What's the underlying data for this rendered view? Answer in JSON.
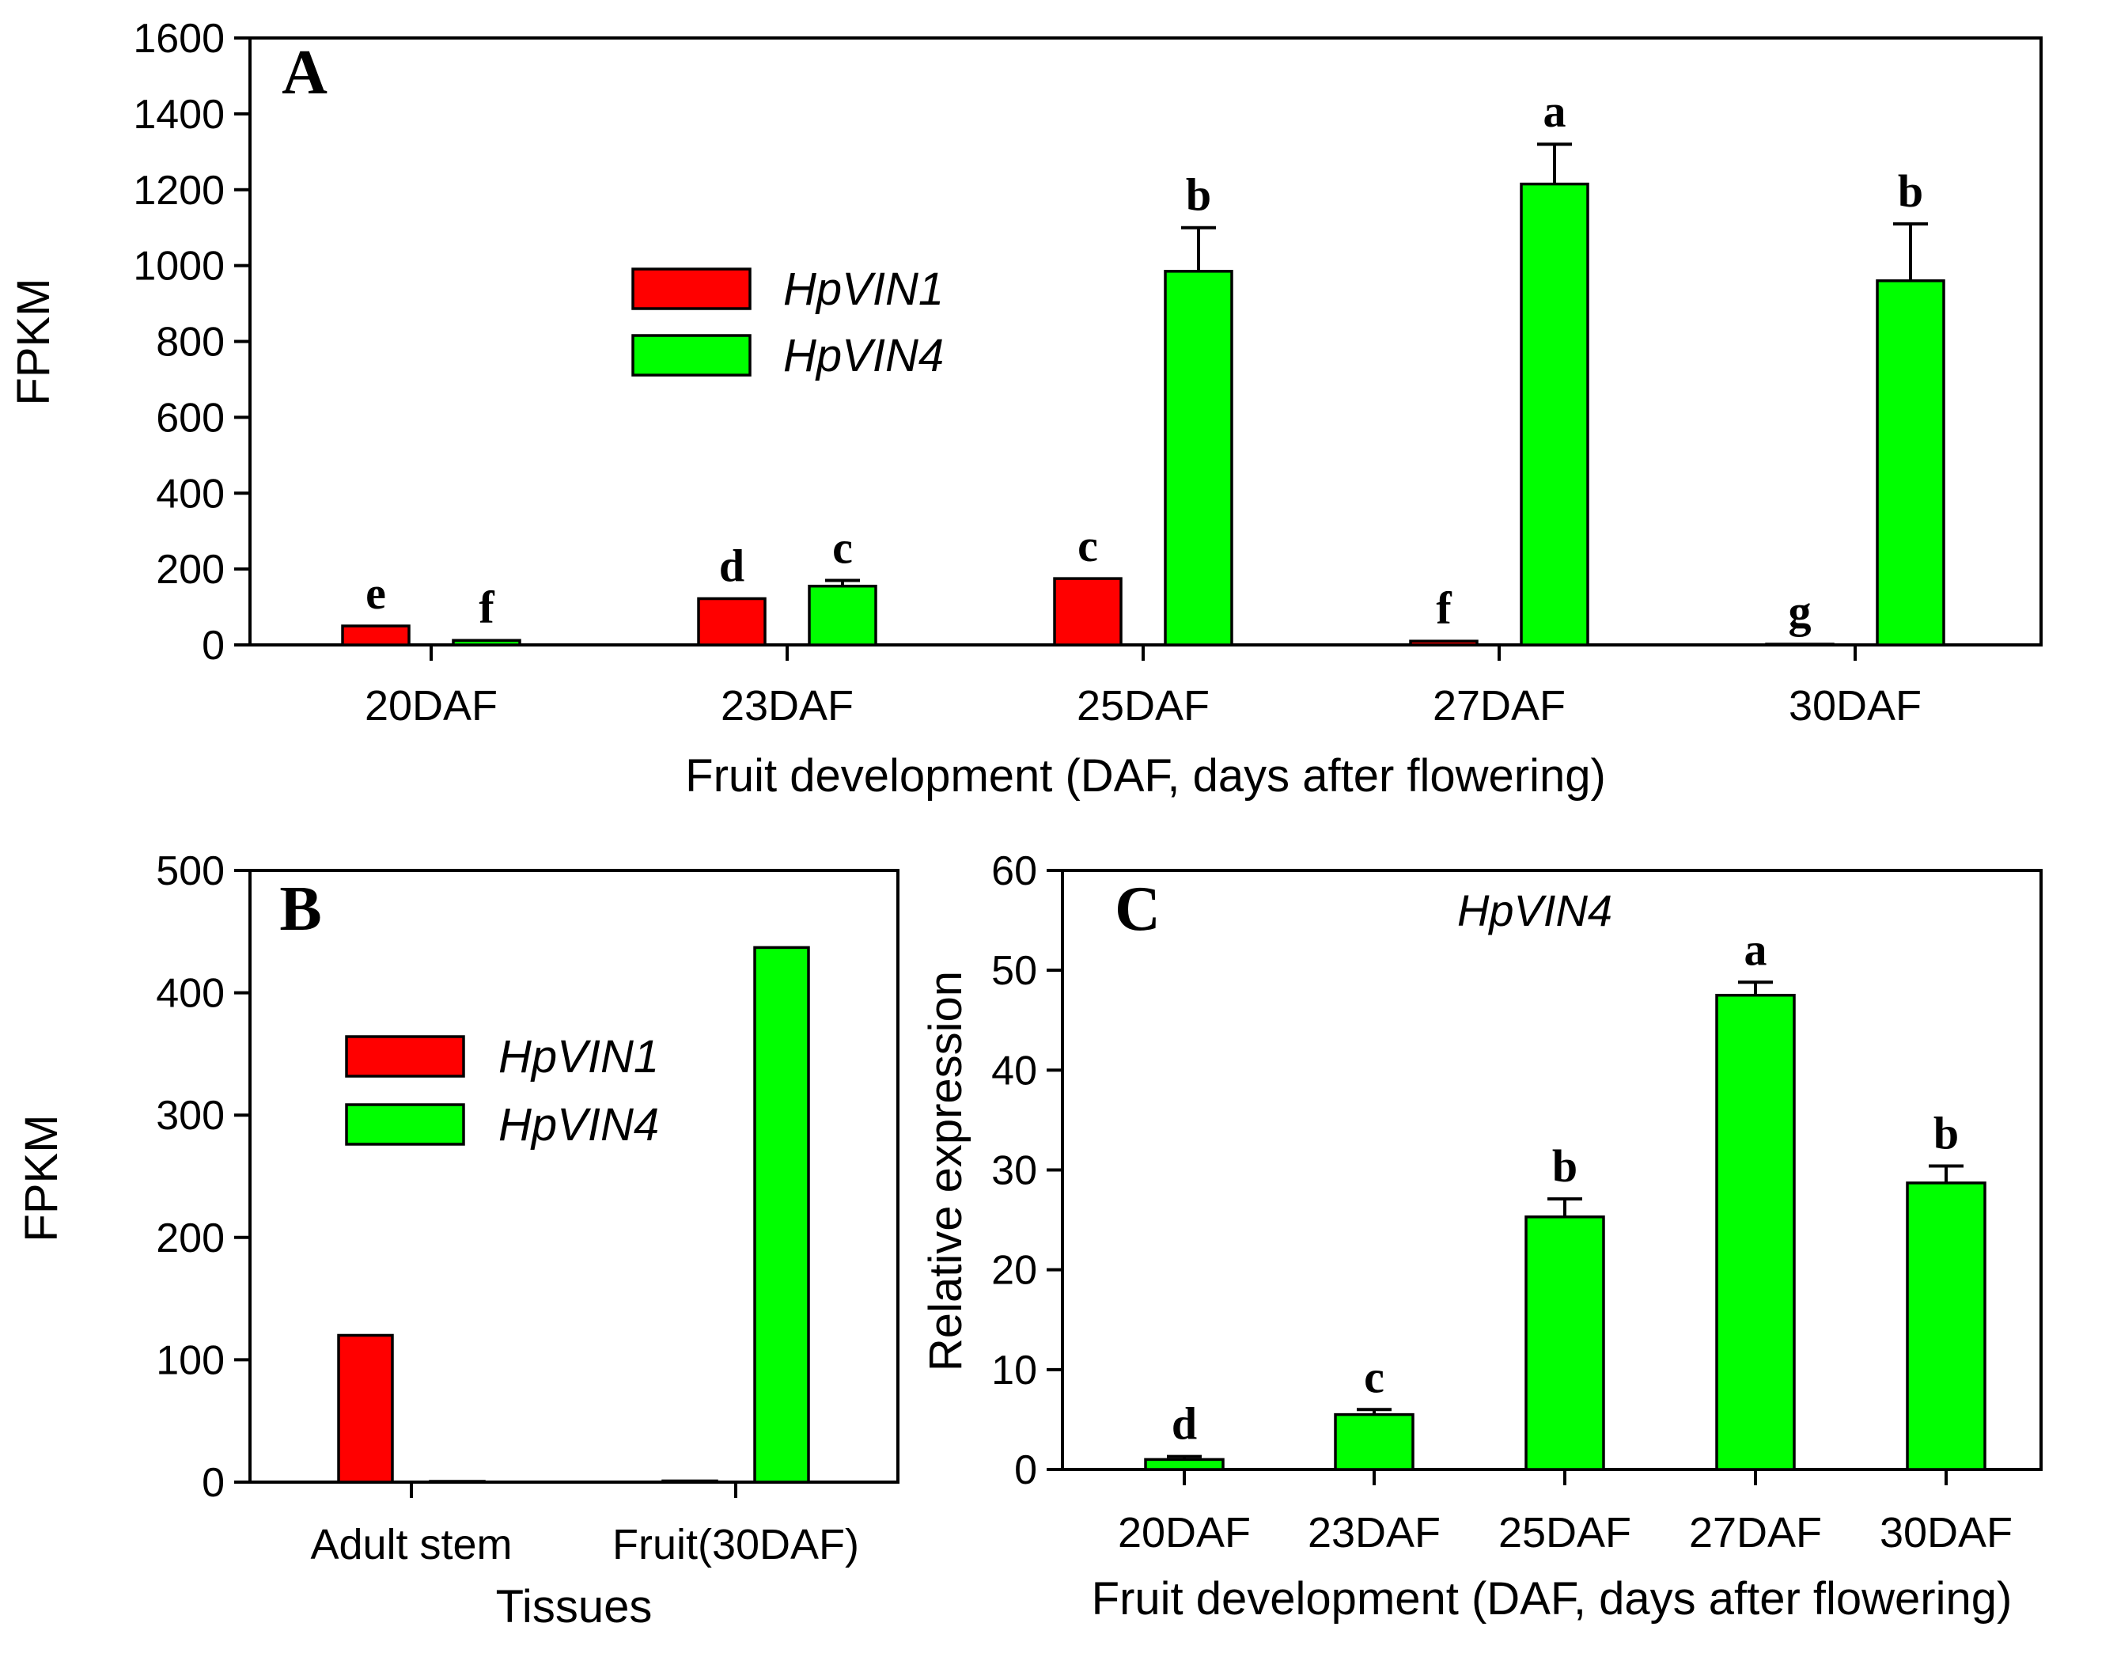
{
  "colors": {
    "series1": "#ff0000",
    "series2": "#00ff00",
    "stroke": "#000000",
    "background": "#ffffff"
  },
  "chart_data": [
    {
      "panel": "A",
      "type": "bar",
      "panel_label": "A",
      "xlabel": "Fruit development (DAF, days after flowering)",
      "ylabel": "FPKM",
      "ylim": [
        0,
        1600
      ],
      "yticks": [
        "0",
        "200",
        "400",
        "600",
        "800",
        "1000",
        "1200",
        "1400",
        "1600"
      ],
      "categories": [
        "20DAF",
        "23DAF",
        "25DAF",
        "27DAF",
        "30DAF"
      ],
      "legend_position": "center-left",
      "series": [
        {
          "name": "HpVIN1",
          "color": "#ff0000",
          "values": [
            50,
            122,
            175,
            10,
            2
          ],
          "errors": [
            0,
            0,
            0,
            0,
            0
          ],
          "letters": [
            "e",
            "d",
            "c",
            "f",
            "g"
          ]
        },
        {
          "name": "HpVIN4",
          "color": "#00ff00",
          "values": [
            12,
            155,
            985,
            1215,
            960
          ],
          "errors": [
            0,
            15,
            115,
            105,
            150
          ],
          "letters": [
            "f",
            "c",
            "b",
            "a",
            "b"
          ]
        }
      ]
    },
    {
      "panel": "B",
      "type": "bar",
      "panel_label": "B",
      "xlabel": "Tissues",
      "ylabel": "FPKM",
      "ylim": [
        0,
        500
      ],
      "yticks": [
        "0",
        "100",
        "200",
        "300",
        "400",
        "500"
      ],
      "categories": [
        "Adult stem",
        "Fruit(30DAF)"
      ],
      "legend_position": "upper-left",
      "series": [
        {
          "name": "HpVIN1",
          "color": "#ff0000",
          "values": [
            120,
            1
          ]
        },
        {
          "name": "HpVIN4",
          "color": "#00ff00",
          "values": [
            0,
            437
          ]
        }
      ]
    },
    {
      "panel": "C",
      "type": "bar",
      "panel_label": "C",
      "title": "HpVIN4",
      "xlabel": "Fruit development (DAF, days after flowering)",
      "ylabel": "Relative expression",
      "ylim": [
        0,
        60
      ],
      "yticks": [
        "0",
        "10",
        "20",
        "30",
        "40",
        "50",
        "60"
      ],
      "categories": [
        "20DAF",
        "23DAF",
        "25DAF",
        "27DAF",
        "30DAF"
      ],
      "series": [
        {
          "name": "HpVIN4",
          "color": "#00ff00",
          "values": [
            1,
            5.5,
            25.3,
            47.5,
            28.7
          ],
          "errors": [
            0.3,
            0.5,
            1.8,
            1.3,
            1.7
          ],
          "letters": [
            "d",
            "c",
            "b",
            "a",
            "b"
          ]
        }
      ]
    }
  ]
}
